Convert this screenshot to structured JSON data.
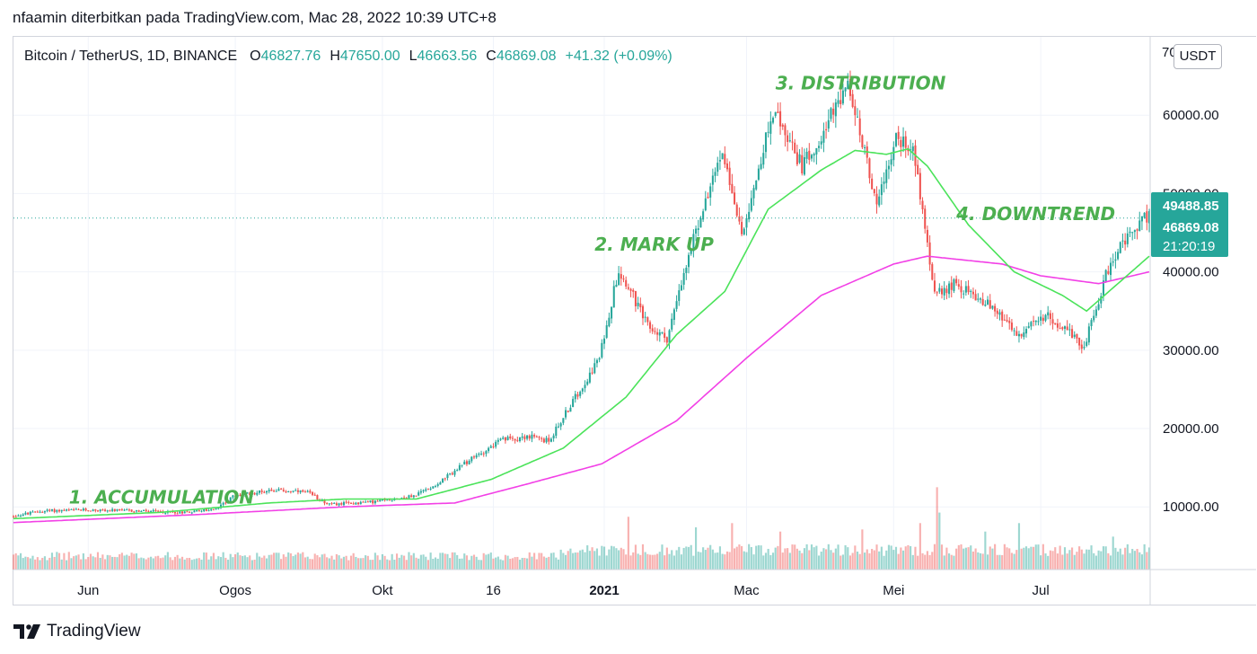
{
  "header": {
    "publish_line": "nfaamin diterbitkan pada TradingView.com, Mac 28, 2022 10:39 UTC+8"
  },
  "legend": {
    "symbol": "Bitcoin / TetherUS, 1D, BINANCE",
    "open_label": "O",
    "open": "46827.76",
    "high_label": "H",
    "high": "47650.00",
    "low_label": "L",
    "low": "46663.56",
    "close_label": "C",
    "close": "46869.08",
    "change": "+41.32 (+0.09%)"
  },
  "price_axis": {
    "unit": "USDT",
    "top_partial_label": "70",
    "labels": [
      "60000.00",
      "50000.00",
      "40000.00",
      "30000.00",
      "20000.00",
      "10000.00"
    ],
    "badge_upper": "49488.85",
    "badge_price": "46869.08",
    "badge_countdown": "21:20:19"
  },
  "footer": {
    "brand": "TradingView"
  },
  "colors": {
    "up": "#26a69a",
    "down": "#ef5350",
    "ma_fast": "#4be35a",
    "ma_slow": "#f240e6",
    "annotation": "#4caf50",
    "last_price_line": "#26a69a"
  },
  "chart_data": {
    "type": "candlestick",
    "x_tick_labels": [
      "Jun",
      "Ogos",
      "Okt",
      "16",
      "2021",
      "Mac",
      "Mei",
      "Jul"
    ],
    "x_range": [
      "2020-05-01",
      "2021-08-15"
    ],
    "y_range": [
      2000,
      70000
    ],
    "last_price": 46869.08,
    "annotations": [
      {
        "text": "1. ACCUMULATION",
        "date": "2020-05-24",
        "price": 10400
      },
      {
        "text": "2. MARK UP",
        "date": "2020-12-28",
        "price": 42700
      },
      {
        "text": "3. DISTRIBUTION",
        "date": "2021-03-13",
        "price": 63300
      },
      {
        "text": "4. DOWNTREND",
        "date": "2021-05-27",
        "price": 46600
      }
    ],
    "price_anchors": [
      [
        "2020-05-01",
        8800
      ],
      [
        "2020-05-15",
        9500
      ],
      [
        "2020-06-01",
        9600
      ],
      [
        "2020-06-20",
        9500
      ],
      [
        "2020-07-10",
        9300
      ],
      [
        "2020-07-25",
        9700
      ],
      [
        "2020-08-01",
        11300
      ],
      [
        "2020-08-17",
        12200
      ],
      [
        "2020-09-01",
        11800
      ],
      [
        "2020-09-10",
        10300
      ],
      [
        "2020-09-30",
        10700
      ],
      [
        "2020-10-15",
        11400
      ],
      [
        "2020-10-25",
        13000
      ],
      [
        "2020-11-05",
        15500
      ],
      [
        "2020-11-20",
        18500
      ],
      [
        "2020-12-01",
        19000
      ],
      [
        "2020-12-10",
        18400
      ],
      [
        "2020-12-20",
        23500
      ],
      [
        "2020-12-31",
        29000
      ],
      [
        "2021-01-08",
        40500
      ],
      [
        "2021-01-20",
        33000
      ],
      [
        "2021-01-28",
        31500
      ],
      [
        "2021-02-08",
        44000
      ],
      [
        "2021-02-20",
        55500
      ],
      [
        "2021-02-28",
        45000
      ],
      [
        "2021-03-13",
        60500
      ],
      [
        "2021-03-25",
        53500
      ],
      [
        "2021-04-13",
        63500
      ],
      [
        "2021-04-25",
        49000
      ],
      [
        "2021-05-03",
        57000
      ],
      [
        "2021-05-10",
        56000
      ],
      [
        "2021-05-19",
        37000
      ],
      [
        "2021-05-27",
        38500
      ],
      [
        "2021-06-10",
        36000
      ],
      [
        "2021-06-22",
        32000
      ],
      [
        "2021-07-05",
        34500
      ],
      [
        "2021-07-20",
        30500
      ],
      [
        "2021-07-31",
        41500
      ],
      [
        "2021-08-08",
        44500
      ],
      [
        "2021-08-15",
        47200
      ]
    ],
    "ma_fast_anchors": [
      [
        "2020-05-01",
        8500
      ],
      [
        "2020-07-01",
        9300
      ],
      [
        "2020-08-15",
        10500
      ],
      [
        "2020-09-15",
        11000
      ],
      [
        "2020-10-15",
        11000
      ],
      [
        "2020-11-15",
        13500
      ],
      [
        "2020-12-15",
        17500
      ],
      [
        "2021-01-10",
        24000
      ],
      [
        "2021-01-31",
        32000
      ],
      [
        "2021-02-20",
        37500
      ],
      [
        "2021-03-10",
        48000
      ],
      [
        "2021-04-01",
        53000
      ],
      [
        "2021-04-15",
        55500
      ],
      [
        "2021-04-28",
        55000
      ],
      [
        "2021-05-07",
        55700
      ],
      [
        "2021-05-15",
        53500
      ],
      [
        "2021-06-01",
        46000
      ],
      [
        "2021-06-20",
        40000
      ],
      [
        "2021-07-10",
        37000
      ],
      [
        "2021-07-20",
        35000
      ],
      [
        "2021-08-15",
        42000
      ]
    ],
    "ma_slow_anchors": [
      [
        "2020-05-01",
        8000
      ],
      [
        "2020-07-15",
        9000
      ],
      [
        "2020-09-15",
        10000
      ],
      [
        "2020-10-31",
        10500
      ],
      [
        "2020-12-01",
        13000
      ],
      [
        "2020-12-31",
        15500
      ],
      [
        "2021-01-31",
        21000
      ],
      [
        "2021-03-01",
        29000
      ],
      [
        "2021-04-01",
        37000
      ],
      [
        "2021-05-01",
        41000
      ],
      [
        "2021-05-15",
        42000
      ],
      [
        "2021-06-15",
        41000
      ],
      [
        "2021-07-01",
        39500
      ],
      [
        "2021-07-25",
        38500
      ],
      [
        "2021-08-15",
        40000
      ]
    ],
    "volume_scale_max": 20000,
    "volume_spikes": [
      [
        "2021-01-11",
        12500
      ],
      [
        "2021-02-08",
        10000
      ],
      [
        "2021-02-23",
        11000
      ],
      [
        "2021-03-15",
        9000
      ],
      [
        "2021-04-18",
        9500
      ],
      [
        "2021-05-12",
        11000
      ],
      [
        "2021-05-19",
        19500
      ],
      [
        "2021-05-20",
        13500
      ],
      [
        "2021-06-08",
        9000
      ],
      [
        "2021-06-22",
        11000
      ],
      [
        "2021-07-31",
        7800
      ]
    ]
  }
}
